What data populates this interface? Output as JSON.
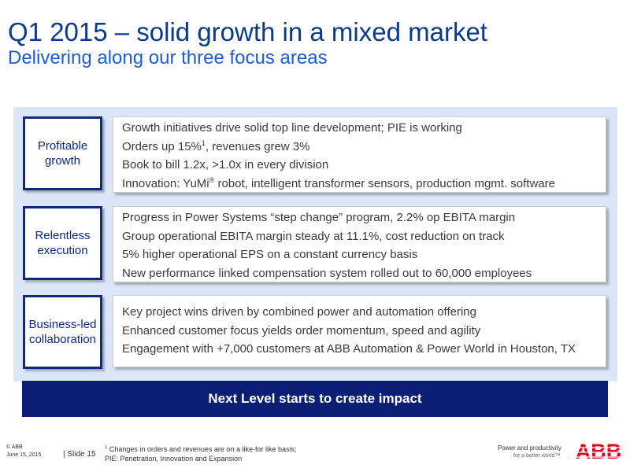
{
  "title": "Q1 2015 – solid growth in a mixed market",
  "subtitle": "Delivering along our three focus areas",
  "focus_areas": [
    {
      "label": "Profitable growth",
      "points": [
        {
          "text": "Growth initiatives drive solid top line development; PIE is working"
        },
        {
          "text": "Orders up 15%",
          "sup": "1",
          "after": ", revenues grew 3%"
        },
        {
          "text": "Book to bill 1.2x, >1.0x in every division"
        },
        {
          "text": "Innovation: YuMi",
          "sup": "®",
          "after": " robot, intelligent transformer sensors, production mgmt. software"
        }
      ]
    },
    {
      "label": "Relentless execution",
      "points": [
        {
          "text": "Progress in Power Systems “step change” program, 2.2% op EBITA margin"
        },
        {
          "text": "Group operational EBITA margin steady at 11.1%, cost reduction on track"
        },
        {
          "text": "5% higher operational EPS on a constant currency basis"
        },
        {
          "text": "New performance linked compensation system rolled out to 60,000 employees"
        }
      ]
    },
    {
      "label": "Business-led collaboration",
      "points": [
        {
          "text": "Key project wins driven by combined power and automation offering"
        },
        {
          "text": "Enhanced customer focus yields order momentum, speed and agility"
        },
        {
          "text": "Engagement with +7,000 customers at ABB Automation & Power World in Houston, TX"
        }
      ]
    }
  ],
  "banner": "Next Level starts to create impact",
  "footer": {
    "copyright": "© ABB",
    "date": "June 15, 2015",
    "slide": "| Slide 15",
    "footnote_sup": "1",
    "footnote_line1": " Changes in orders and revenues are on a like-for like basis;",
    "footnote_line2": "PIE: Penetration, Innovation and Expansion",
    "tagline_1": "Power and productivity",
    "tagline_2": "for a better world™",
    "logo_text": "ABB"
  },
  "colors": {
    "title": "#0a3a8c",
    "subtitle": "#1e5ccf",
    "panel": "#dbe7f6",
    "banner": "#0a1f74",
    "logo_red": "#e2001a"
  }
}
